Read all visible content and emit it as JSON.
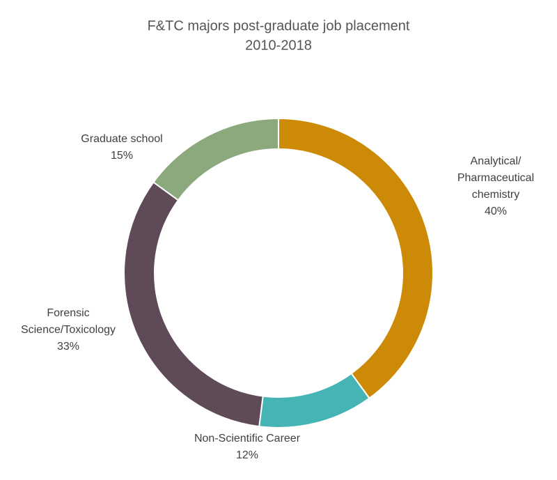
{
  "chart_data": {
    "type": "donut",
    "title": "F&TC majors post-graduate job placement",
    "subtitle": "2010-2018",
    "categories": [
      [
        "Analytical/",
        "Pharmaceutical",
        "chemistry"
      ],
      [
        "Non-Scientific Career"
      ],
      [
        "Forensic",
        "Science/Toxicology"
      ],
      [
        "Graduate school"
      ]
    ],
    "values": [
      40,
      12,
      33,
      15
    ],
    "value_labels": [
      "40%",
      "12%",
      "33%",
      "15%"
    ],
    "colors": [
      "#cc8a06",
      "#46b3b4",
      "#5f4a57",
      "#8ba97c"
    ]
  }
}
